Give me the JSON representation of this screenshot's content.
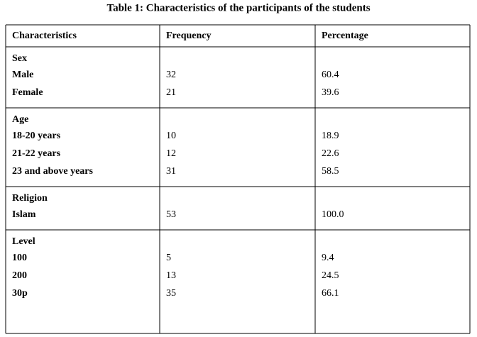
{
  "title": "Table 1: Characteristics of the participants of the students",
  "table": {
    "header": [
      "Characteristics",
      "Frequency",
      "Percentage"
    ],
    "groups": [
      {
        "label": "Sex",
        "rows": [
          [
            "Male",
            "32",
            "60.4"
          ],
          [
            "Female",
            "21",
            "39.6"
          ]
        ]
      },
      {
        "label": "Age",
        "rows": [
          [
            "18-20 years",
            "10",
            "18.9"
          ],
          [
            "21-22 years",
            "12",
            "22.6"
          ],
          [
            "23 and above years",
            "31",
            "58.5"
          ]
        ]
      },
      {
        "label": "Religion",
        "rows": [
          [
            "Islam",
            "53",
            "100.0"
          ]
        ]
      },
      {
        "label": "Level",
        "rows": [
          [
            "100",
            "5",
            "9.4"
          ],
          [
            "200",
            "13",
            "24.5"
          ],
          [
            "30p",
            "35",
            "66.1"
          ]
        ]
      }
    ]
  }
}
